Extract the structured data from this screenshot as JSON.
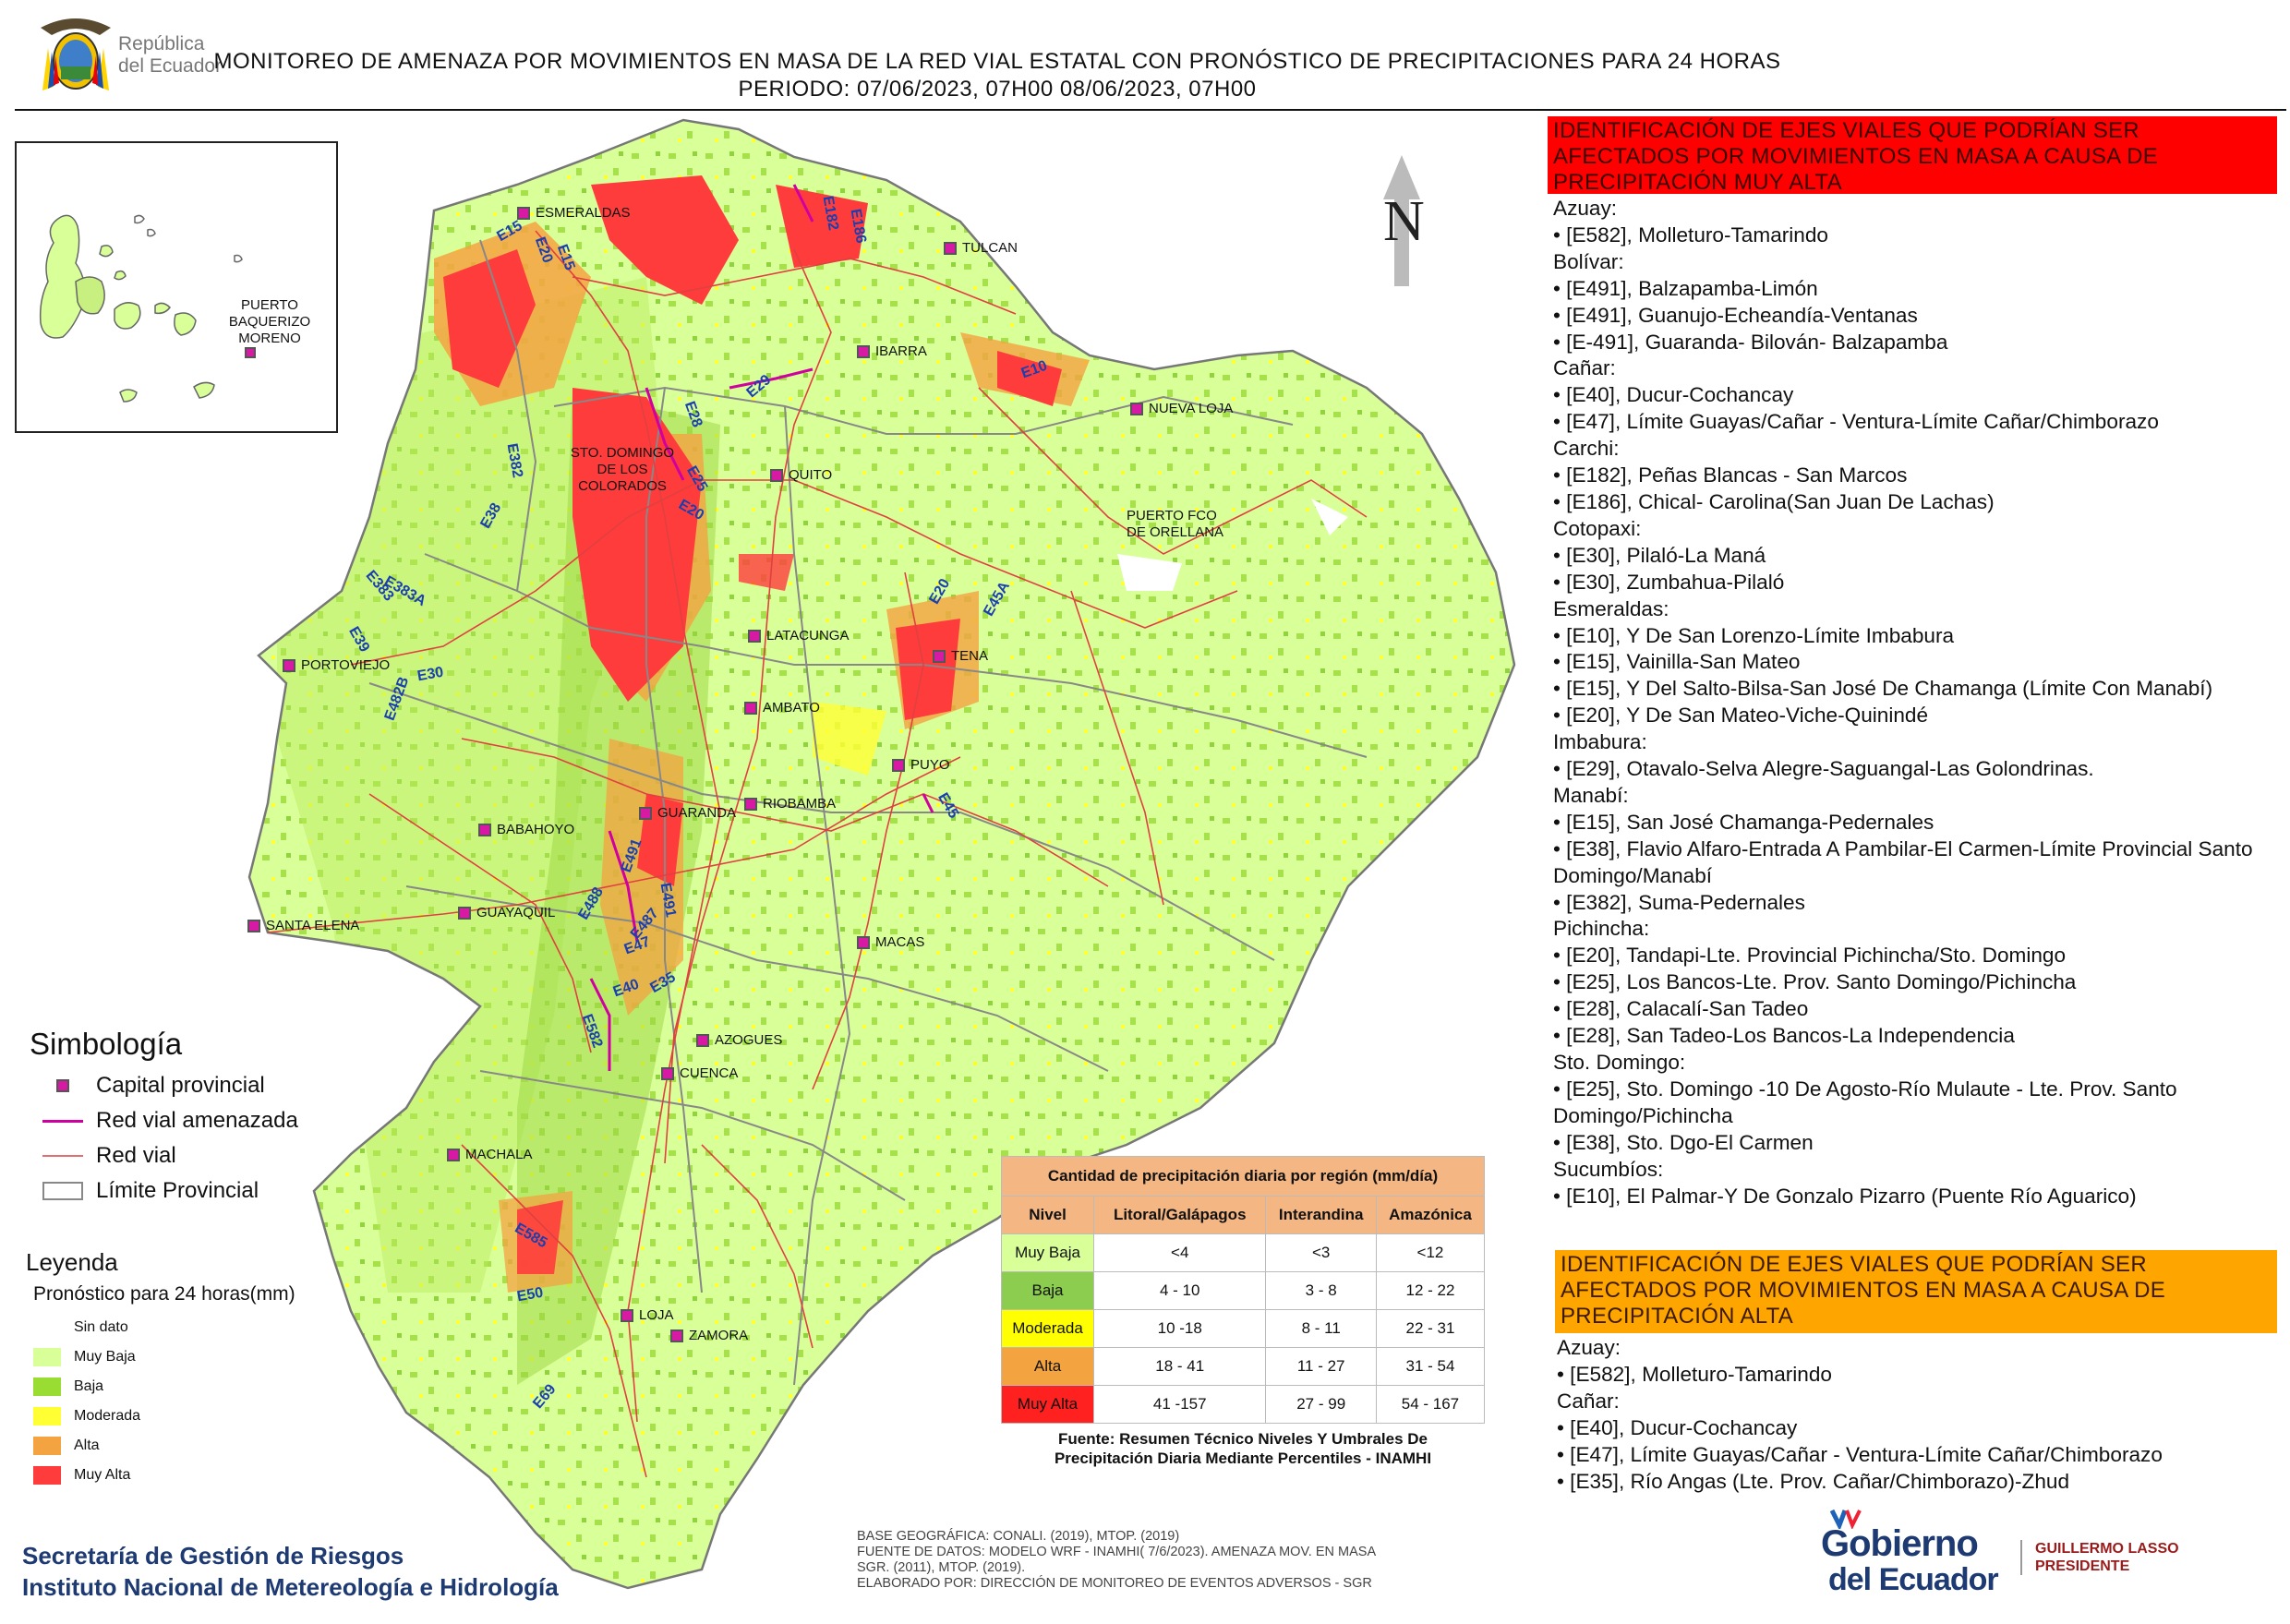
{
  "header": {
    "logo_text_1": "República",
    "logo_text_2": "del Ecuador",
    "title_line_1": "MONITOREO DE AMENAZA POR MOVIMIENTOS EN MASA DE LA RED VIAL  ESTATAL  CON PRONÓSTICO  DE  PRECIPITACIONES PARA 24 HORAS",
    "title_line_2": "PERIODO: 07/06/2023, 07H00 08/06/2023, 07H00"
  },
  "map": {
    "north_label": "N",
    "inset_city": "PUERTO BAQUERIZO MORENO",
    "inset_city_line_1": "PUERTO",
    "inset_city_line_2": "BAQUERIZO",
    "inset_city_line_3": "MORENO",
    "cities": {
      "esmeraldas": "ESMERALDAS",
      "tulcan": "TULCAN",
      "ibarra": "IBARRA",
      "nueva_loja": "NUEVA LOJA",
      "sto_domingo_1": "STO. DOMINGO",
      "sto_domingo_2": "DE LOS",
      "sto_domingo_3": "COLORADOS",
      "quito": "QUITO",
      "orellana_1": "PUERTO FCO",
      "orellana_2": "DE ORELLANA",
      "portoviejo": "PORTOVIEJO",
      "latacunga": "LATACUNGA",
      "tena": "TENA",
      "ambato": "AMBATO",
      "puyo": "PUYO",
      "guaranda": "GUARANDA",
      "riobamba": "RIOBAMBA",
      "babahoyo": "BABAHOYO",
      "guayaquil": "GUAYAQUIL",
      "santa_elena": "SANTA ELENA",
      "macas": "MACAS",
      "azogues": "AZOGUES",
      "cuenca": "CUENCA",
      "machala": "MACHALA",
      "loja": "LOJA",
      "zamora": "ZAMORA"
    },
    "roads": {
      "e15a": "E15",
      "e20a": "E20",
      "e15b": "E15",
      "e182": "E182",
      "e186": "E186",
      "e10": "E10",
      "e29": "E29",
      "e28": "E28",
      "e382": "E382",
      "e25": "E25",
      "e20b": "E20",
      "e38": "E38",
      "e383": "E383",
      "e383a": "E383A",
      "e39": "E39",
      "e30": "E30",
      "e482b": "E482B",
      "e20c": "E20",
      "e45a": "E45A",
      "e45": "E45",
      "e491a": "E491",
      "e491b": "E491",
      "e488": "E488",
      "e487": "E487",
      "e47": "E47",
      "e40": "E40",
      "e35": "E35",
      "e582": "E582",
      "e585": "E585",
      "e50": "E50",
      "e69": "E69"
    }
  },
  "symbology": {
    "title": "Simbología",
    "items": [
      "Capital provincial",
      "Red vial amenazada",
      "Red vial",
      "Límite Provincial"
    ]
  },
  "legend": {
    "title": "Leyenda",
    "subtitle": "Pronóstico para 24 horas(mm)",
    "items": [
      {
        "label": "Sin dato",
        "color": "#ffffff"
      },
      {
        "label": "Muy Baja",
        "color": "#d9ff99"
      },
      {
        "label": "Baja",
        "color": "#99dd33"
      },
      {
        "label": "Moderada",
        "color": "#ffff33"
      },
      {
        "label": "Alta",
        "color": "#f4a341"
      },
      {
        "label": "Muy Alta",
        "color": "#ff3c3c"
      }
    ]
  },
  "precip_table": {
    "title": "Cantidad de precipitación diaria por región (mm/día)",
    "headers": [
      "Nivel",
      "Litoral/Galápagos",
      "Interandina",
      "Amazónica"
    ],
    "rows": [
      {
        "level": "Muy Baja",
        "color": "#d9ff99",
        "litoral": "<4",
        "interandina": "<3",
        "amazonica": "<12"
      },
      {
        "level": "Baja",
        "color": "#8ccc4e",
        "litoral": "4 - 10",
        "interandina": "3 - 8",
        "amazonica": "12 - 22"
      },
      {
        "level": "Moderada",
        "color": "#ffff00",
        "litoral": "10 -18",
        "interandina": "8 - 11",
        "amazonica": "22 - 31"
      },
      {
        "level": "Alta",
        "color": "#f4a341",
        "litoral": "18 - 41",
        "interandina": "11 - 27",
        "amazonica": "31 - 54"
      },
      {
        "level": "Muy Alta",
        "color": "#ff2020",
        "litoral": "41 -157",
        "interandina": "27 - 99",
        "amazonica": "54 - 167"
      }
    ],
    "source_1": "Fuente: Resumen Técnico Niveles Y Umbrales De",
    "source_2": "Precipitación Diaria Mediante Percentiles - INAMHI"
  },
  "muy_alta": {
    "header": "IDENTIFICACIÓN DE EJES VIALES QUE PODRÍAN SER AFECTADOS POR MOVIMIENTOS EN MASA A CAUSA DE PRECIPITACIÓN MUY ALTA",
    "lines": [
      "Azuay:",
      "• [E582], Molleturo-Tamarindo",
      "Bolívar:",
      "• [E491], Balzapamba-Limón",
      "• [E491], Guanujo-Echeandía-Ventanas",
      "• [E-491], Guaranda- Bilován- Balzapamba",
      "Cañar:",
      "• [E40], Ducur-Cochancay",
      "• [E47], Límite Guayas/Cañar - Ventura-Límite Cañar/Chimborazo",
      "Carchi:",
      "• [E182], Peñas Blancas - San Marcos",
      "• [E186], Chical- Carolina(San Juan De Lachas)",
      "Cotopaxi:",
      "• [E30], Pilaló-La Maná",
      "• [E30], Zumbahua-Pilaló",
      "Esmeraldas:",
      "• [E10], Y De San Lorenzo-Límite Imbabura",
      "• [E15], Vainilla-San Mateo",
      "• [E15], Y Del Salto-Bilsa-San José De Chamanga (Límite Con Manabí)",
      "• [E20], Y De San Mateo-Viche-Quinindé",
      "Imbabura:",
      "• [E29], Otavalo-Selva Alegre-Saguangal-Las Golondrinas.",
      "Manabí:",
      "• [E15], San José Chamanga-Pedernales",
      "• [E38], Flavio Alfaro-Entrada A Pambilar-El Carmen-Límite Provincial Santo Domingo/Manabí",
      "• [E382], Suma-Pedernales",
      "Pichincha:",
      "• [E20], Tandapi-Lte. Provincial Pichincha/Sto. Domingo",
      "• [E25], Los Bancos-Lte. Prov. Santo Domingo/Pichincha",
      "• [E28], Calacalí-San Tadeo",
      "• [E28], San Tadeo-Los Bancos-La Independencia",
      "Sto. Domingo:",
      "• [E25], Sto. Domingo -10 De Agosto-Río Mulaute - Lte. Prov. Santo Domingo/Pichincha",
      "• [E38], Sto. Dgo-El Carmen",
      "Sucumbíos:",
      "• [E10], El Palmar-Y De Gonzalo Pizarro (Puente Río Aguarico)"
    ]
  },
  "alta": {
    "header": "IDENTIFICACIÓN DE EJES VIALES QUE PODRÍAN SER AFECTADOS POR MOVIMIENTOS EN MASA A CAUSA DE PRECIPITACIÓN  ALTA",
    "lines": [
      "Azuay:",
      "• [E582], Molleturo-Tamarindo",
      "Cañar:",
      "• [E40], Ducur-Cochancay",
      "• [E47], Límite Guayas/Cañar - Ventura-Límite Cañar/Chimborazo",
      "• [E35], Río Angas (Lte. Prov. Cañar/Chimborazo)-Zhud"
    ]
  },
  "footer": {
    "inst_1": "Secretaría de Gestión de Riesgos",
    "inst_2": "Instituto Nacional de Metereología e Hidrología",
    "credit_1": "BASE GEOGRÁFICA: CONALI. (2019), MTOP. (2019)",
    "credit_2": "FUENTE DE DATOS: MODELO WRF - INAMHI( 7/6/2023).  AMENAZA MOV. EN MASA",
    "credit_3": "SGR. (2011), MTOP. (2019).",
    "credit_4": "ELABORADO POR: DIRECCIÓN DE MONITOREO DE EVENTOS ADVERSOS - SGR",
    "gob_1": "Gobierno",
    "gob_2": "del Ecuador",
    "pres_1": "GUILLERMO LASSO",
    "pres_2": "PRESIDENTE"
  }
}
